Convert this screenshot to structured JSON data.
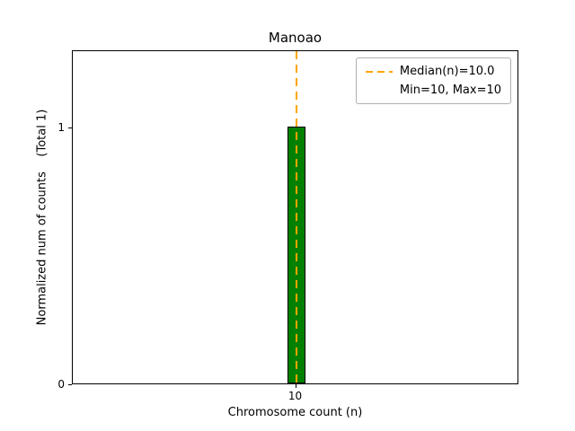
{
  "chart_data": {
    "type": "bar",
    "title": "Manoao",
    "xlabel": "Chromosome count (n)",
    "ylabel": "Normalized num of counts    (Total 1)",
    "categories": [
      "10"
    ],
    "values": [
      1
    ],
    "total": 1,
    "yticks": [
      0,
      1
    ],
    "ytick_labels": [
      "0",
      "1"
    ],
    "ylim": [
      0,
      1.3
    ],
    "median": 10.0,
    "min": 10,
    "max": 10,
    "grid": false,
    "legend": {
      "position": "upper right",
      "entries": [
        "Median(n)=10.0",
        "Min=10, Max=10"
      ]
    },
    "colors": {
      "bar_fill": "#008000",
      "bar_edge": "#000000",
      "median_line": "#FFA500"
    }
  }
}
